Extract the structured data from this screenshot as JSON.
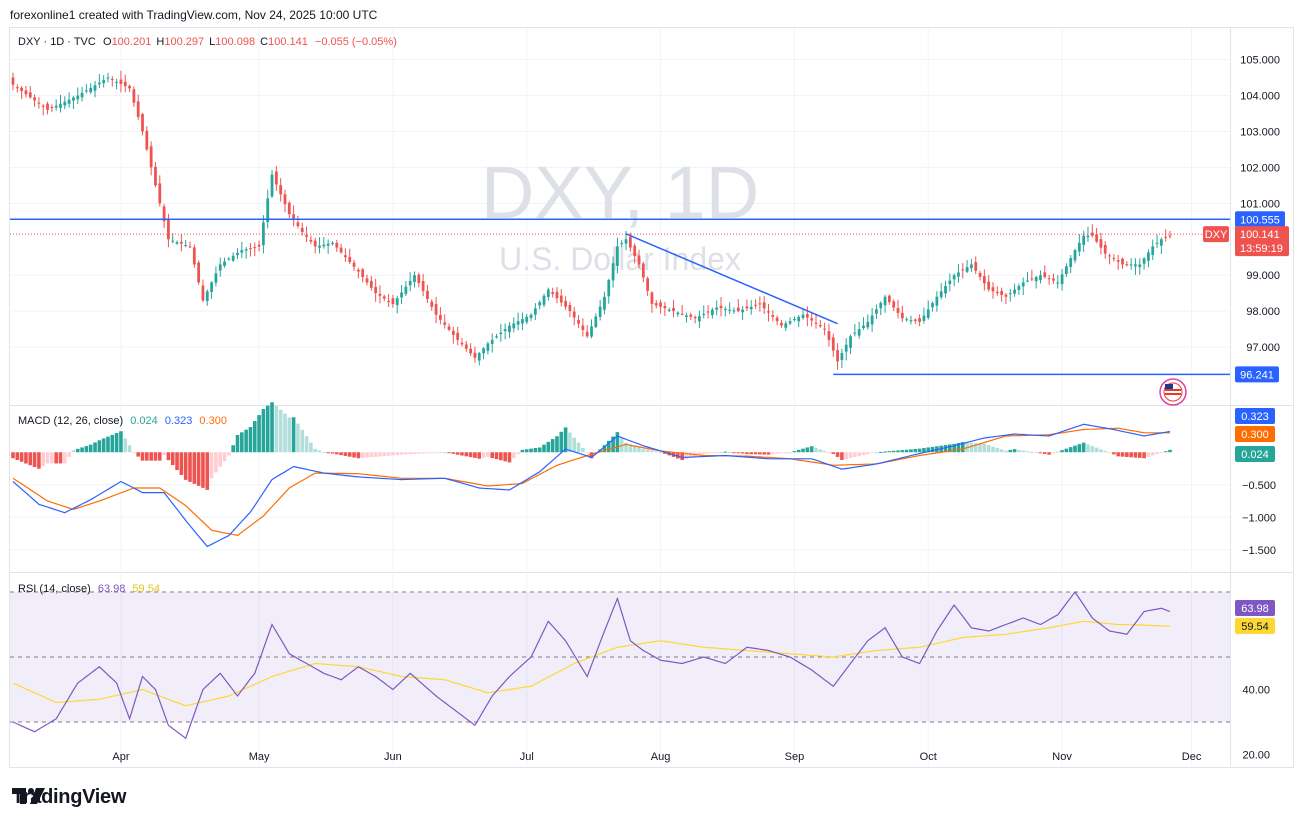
{
  "header": {
    "credit": "forexonline1 created with TradingView.com, Nov 24, 2025 10:00 UTC"
  },
  "footer": {
    "logo_text": "TradingView"
  },
  "colors": {
    "up": "#26a69a",
    "down": "#ef5350",
    "blue": "#2962ff",
    "orange": "#ff6d00",
    "rsi": "#7e57c2",
    "rsi_ma": "#fdd835",
    "grid": "#f0f3fa",
    "text": "#131722",
    "watermark": "#d1d4dc",
    "hist_up": "#26a69a",
    "hist_up_light": "#b2dfdb",
    "hist_down": "#ef5350",
    "hist_down_light": "#ffcdd2"
  },
  "chart_data": [
    {
      "type": "candlestick",
      "symbol_info": {
        "name": "DXY · 1D · TVC",
        "o_label": "O",
        "o_value": "100.201",
        "h_label": "H",
        "h_value": "100.297",
        "l_label": "L",
        "l_value": "100.098",
        "c_label": "C",
        "c_value": "100.141",
        "change": "−0.055 (−0.05%)"
      },
      "watermark_title": "DXY, 1D",
      "watermark_subtitle": "U.S. Dollar Index",
      "y_ticks": [
        "105.000",
        "104.000",
        "103.000",
        "102.000",
        "101.000",
        "99.000",
        "98.000",
        "97.000"
      ],
      "y_tick_values": [
        105,
        104,
        103,
        102,
        101,
        99,
        98,
        97
      ],
      "x_ticks": [
        "Apr",
        "May",
        "Jun",
        "Jul",
        "Aug",
        "Sep",
        "Oct",
        "Nov",
        "Dec"
      ],
      "ylim": [
        96.0,
        105.6
      ],
      "last_price": {
        "symbol": "DXY",
        "value": "100.141",
        "countdown": "13:59:19",
        "num": 100.141
      },
      "resistance": {
        "label": "100.555",
        "value": 100.555
      },
      "support": {
        "label": "96.241",
        "value": 96.241
      },
      "waypoints": [
        [
          0,
          104.3
        ],
        [
          8,
          103.6
        ],
        [
          15,
          104.0
        ],
        [
          22,
          104.5
        ],
        [
          27,
          104.2
        ],
        [
          30,
          103.0
        ],
        [
          33,
          101.5
        ],
        [
          36,
          100.0
        ],
        [
          41,
          99.8
        ],
        [
          44,
          98.3
        ],
        [
          48,
          99.3
        ],
        [
          53,
          99.7
        ],
        [
          57,
          99.8
        ],
        [
          60,
          101.8
        ],
        [
          64,
          100.7
        ],
        [
          67,
          100.2
        ],
        [
          70,
          99.8
        ],
        [
          74,
          99.9
        ],
        [
          77,
          99.5
        ],
        [
          80,
          99.1
        ],
        [
          84,
          98.5
        ],
        [
          88,
          98.2
        ],
        [
          93,
          99.0
        ],
        [
          98,
          97.9
        ],
        [
          103,
          97.2
        ],
        [
          107,
          96.7
        ],
        [
          110,
          97.1
        ],
        [
          115,
          97.6
        ],
        [
          120,
          97.9
        ],
        [
          124,
          98.6
        ],
        [
          129,
          98.0
        ],
        [
          133,
          97.3
        ],
        [
          137,
          98.4
        ],
        [
          140,
          99.8
        ],
        [
          142,
          100.0
        ],
        [
          145,
          99.3
        ],
        [
          148,
          98.2
        ],
        [
          153,
          98.0
        ],
        [
          158,
          97.8
        ],
        [
          163,
          98.1
        ],
        [
          168,
          98.0
        ],
        [
          173,
          98.2
        ],
        [
          178,
          97.6
        ],
        [
          183,
          97.9
        ],
        [
          188,
          97.5
        ],
        [
          191,
          96.6
        ],
        [
          194,
          97.3
        ],
        [
          198,
          97.7
        ],
        [
          202,
          98.4
        ],
        [
          206,
          97.8
        ],
        [
          210,
          97.7
        ],
        [
          214,
          98.4
        ],
        [
          218,
          99.0
        ],
        [
          222,
          99.3
        ],
        [
          226,
          98.6
        ],
        [
          230,
          98.4
        ],
        [
          234,
          98.8
        ],
        [
          238,
          99.0
        ],
        [
          242,
          98.8
        ],
        [
          246,
          99.7
        ],
        [
          248,
          100.1
        ],
        [
          250,
          100.1
        ],
        [
          253,
          99.6
        ],
        [
          257,
          99.3
        ],
        [
          261,
          99.3
        ],
        [
          264,
          99.8
        ],
        [
          266,
          100.0
        ],
        [
          268,
          100.1
        ]
      ]
    },
    {
      "type": "line",
      "title": "MACD",
      "params": "(12, 26, close)",
      "values_text": {
        "hist": "0.024",
        "macd": "0.323",
        "signal": "0.300"
      },
      "y_ticks": [
        "−0.500",
        "−1.000",
        "−1.500"
      ],
      "y_tick_values": [
        -0.5,
        -1.0,
        -1.5
      ],
      "ylim": [
        -1.75,
        0.65
      ],
      "badges": {
        "macd": "0.323",
        "signal": "0.300",
        "hist": "0.024"
      },
      "macd_waypoints": [
        [
          0,
          -0.45
        ],
        [
          6,
          -0.8
        ],
        [
          12,
          -0.93
        ],
        [
          18,
          -0.73
        ],
        [
          25,
          -0.45
        ],
        [
          30,
          -0.62
        ],
        [
          35,
          -0.62
        ],
        [
          40,
          -1.05
        ],
        [
          45,
          -1.45
        ],
        [
          50,
          -1.28
        ],
        [
          55,
          -0.92
        ],
        [
          60,
          -0.42
        ],
        [
          65,
          -0.22
        ],
        [
          72,
          -0.32
        ],
        [
          80,
          -0.38
        ],
        [
          90,
          -0.42
        ],
        [
          100,
          -0.4
        ],
        [
          108,
          -0.55
        ],
        [
          115,
          -0.58
        ],
        [
          122,
          -0.3
        ],
        [
          128,
          0.05
        ],
        [
          134,
          -0.08
        ],
        [
          140,
          0.25
        ],
        [
          146,
          0.1
        ],
        [
          155,
          -0.08
        ],
        [
          165,
          -0.05
        ],
        [
          175,
          -0.1
        ],
        [
          185,
          -0.1
        ],
        [
          192,
          -0.26
        ],
        [
          200,
          -0.18
        ],
        [
          210,
          -0.02
        ],
        [
          218,
          0.1
        ],
        [
          225,
          0.22
        ],
        [
          232,
          0.28
        ],
        [
          240,
          0.25
        ],
        [
          248,
          0.43
        ],
        [
          255,
          0.35
        ],
        [
          262,
          0.25
        ],
        [
          268,
          0.32
        ]
      ],
      "signal_waypoints": [
        [
          0,
          -0.4
        ],
        [
          8,
          -0.75
        ],
        [
          14,
          -0.88
        ],
        [
          20,
          -0.75
        ],
        [
          28,
          -0.55
        ],
        [
          34,
          -0.55
        ],
        [
          40,
          -0.82
        ],
        [
          46,
          -1.2
        ],
        [
          52,
          -1.28
        ],
        [
          58,
          -0.98
        ],
        [
          64,
          -0.55
        ],
        [
          70,
          -0.32
        ],
        [
          80,
          -0.33
        ],
        [
          90,
          -0.4
        ],
        [
          100,
          -0.4
        ],
        [
          110,
          -0.52
        ],
        [
          118,
          -0.48
        ],
        [
          126,
          -0.2
        ],
        [
          134,
          -0.03
        ],
        [
          142,
          0.12
        ],
        [
          150,
          0.02
        ],
        [
          160,
          -0.05
        ],
        [
          170,
          -0.06
        ],
        [
          180,
          -0.1
        ],
        [
          190,
          -0.2
        ],
        [
          200,
          -0.18
        ],
        [
          210,
          -0.05
        ],
        [
          220,
          0.05
        ],
        [
          230,
          0.25
        ],
        [
          240,
          0.27
        ],
        [
          248,
          0.35
        ],
        [
          256,
          0.37
        ],
        [
          262,
          0.3
        ],
        [
          268,
          0.3
        ]
      ]
    },
    {
      "type": "line",
      "title": "RSI",
      "params": "(14, close)",
      "values_text": {
        "rsi": "63.98",
        "ma": "59.54"
      },
      "y_ticks": [
        "40.00",
        "20.00"
      ],
      "y_tick_values": [
        40,
        20
      ],
      "levels": [
        70,
        50,
        30
      ],
      "ylim": [
        18,
        74
      ],
      "badges": {
        "rsi": "63.98",
        "ma": "59.54"
      },
      "rsi_waypoints": [
        [
          0,
          30
        ],
        [
          5,
          27
        ],
        [
          10,
          31
        ],
        [
          15,
          42
        ],
        [
          20,
          47
        ],
        [
          24,
          42
        ],
        [
          27,
          31
        ],
        [
          30,
          44
        ],
        [
          33,
          40
        ],
        [
          36,
          29
        ],
        [
          40,
          25
        ],
        [
          44,
          40
        ],
        [
          48,
          45
        ],
        [
          52,
          38
        ],
        [
          56,
          45
        ],
        [
          60,
          60
        ],
        [
          64,
          51
        ],
        [
          68,
          48
        ],
        [
          72,
          45
        ],
        [
          76,
          43
        ],
        [
          80,
          47
        ],
        [
          84,
          44
        ],
        [
          88,
          40
        ],
        [
          92,
          45
        ],
        [
          98,
          38
        ],
        [
          103,
          33
        ],
        [
          107,
          29
        ],
        [
          111,
          38
        ],
        [
          115,
          44
        ],
        [
          120,
          50
        ],
        [
          124,
          61
        ],
        [
          128,
          55
        ],
        [
          133,
          44
        ],
        [
          137,
          58
        ],
        [
          140,
          68
        ],
        [
          143,
          55
        ],
        [
          146,
          52
        ],
        [
          150,
          49
        ],
        [
          155,
          48
        ],
        [
          160,
          50
        ],
        [
          165,
          48
        ],
        [
          170,
          53
        ],
        [
          175,
          52
        ],
        [
          180,
          50
        ],
        [
          185,
          46
        ],
        [
          190,
          41
        ],
        [
          194,
          48
        ],
        [
          198,
          55
        ],
        [
          202,
          59
        ],
        [
          206,
          50
        ],
        [
          210,
          48
        ],
        [
          214,
          58
        ],
        [
          218,
          66
        ],
        [
          222,
          59
        ],
        [
          226,
          58
        ],
        [
          230,
          60
        ],
        [
          234,
          62
        ],
        [
          238,
          60
        ],
        [
          242,
          63
        ],
        [
          246,
          70
        ],
        [
          250,
          62
        ],
        [
          254,
          58
        ],
        [
          258,
          57
        ],
        [
          262,
          64
        ],
        [
          266,
          65
        ],
        [
          268,
          64
        ]
      ],
      "ma_waypoints": [
        [
          0,
          42
        ],
        [
          10,
          36
        ],
        [
          20,
          37
        ],
        [
          30,
          40
        ],
        [
          40,
          35
        ],
        [
          50,
          38
        ],
        [
          60,
          44
        ],
        [
          70,
          48
        ],
        [
          80,
          47
        ],
        [
          90,
          44
        ],
        [
          100,
          43
        ],
        [
          110,
          39
        ],
        [
          120,
          41
        ],
        [
          130,
          48
        ],
        [
          140,
          53
        ],
        [
          150,
          55
        ],
        [
          160,
          53
        ],
        [
          170,
          52
        ],
        [
          180,
          51
        ],
        [
          190,
          50
        ],
        [
          200,
          52
        ],
        [
          210,
          53
        ],
        [
          220,
          56
        ],
        [
          230,
          57
        ],
        [
          240,
          59
        ],
        [
          248,
          61
        ],
        [
          256,
          60
        ],
        [
          262,
          59.8
        ],
        [
          268,
          59.5
        ]
      ]
    }
  ]
}
